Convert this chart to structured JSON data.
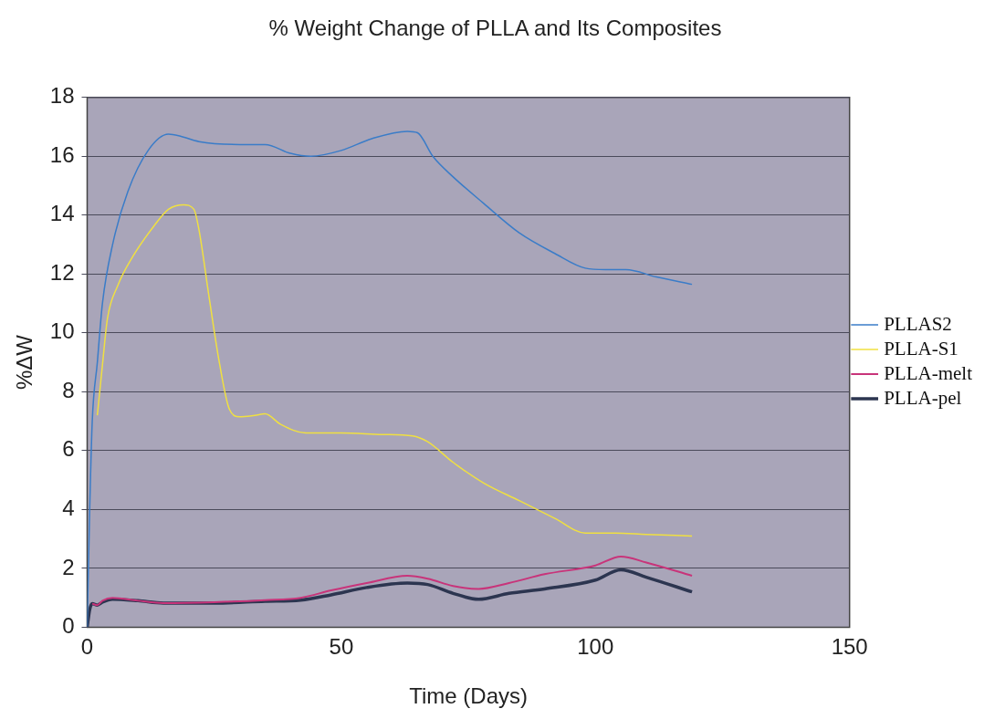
{
  "chart_data": {
    "type": "line",
    "title": "% Weight Change of PLLA and Its Composites",
    "xlabel": "Time (Days)",
    "ylabel": "%ΔW",
    "xlim": [
      0,
      150
    ],
    "xticks": [
      0,
      50,
      100,
      150
    ],
    "ylim": [
      0,
      18
    ],
    "yticks": [
      0,
      2,
      4,
      6,
      8,
      10,
      12,
      14,
      16,
      18
    ],
    "grid": "y",
    "legend": "right",
    "marker": "none",
    "line_style": "solid",
    "series": [
      {
        "name": "PLLA-pel",
        "color": "#2c3550",
        "x": [
          0,
          0.5,
          1,
          2,
          3,
          5,
          10,
          15,
          25,
          35,
          42,
          48,
          55,
          63,
          67,
          72,
          77,
          83,
          90,
          100,
          105,
          110,
          119
        ],
        "values": [
          0,
          0.6,
          0.8,
          0.75,
          0.85,
          0.95,
          0.9,
          0.82,
          0.82,
          0.88,
          0.92,
          1.1,
          1.35,
          1.5,
          1.45,
          1.15,
          0.95,
          1.15,
          1.3,
          1.6,
          1.95,
          1.7,
          1.2
        ]
      },
      {
        "name": "PLLA-melt",
        "color": "#c8347a",
        "x": [
          1,
          2,
          3,
          5,
          10,
          15,
          25,
          35,
          42,
          48,
          55,
          63,
          67,
          72,
          77,
          83,
          90,
          100,
          105,
          110,
          119
        ],
        "values": [
          0.8,
          0.75,
          0.9,
          1.0,
          0.9,
          0.82,
          0.85,
          0.92,
          1.0,
          1.25,
          1.5,
          1.75,
          1.65,
          1.4,
          1.3,
          1.5,
          1.8,
          2.1,
          2.4,
          2.2,
          1.75
        ]
      },
      {
        "name": "PLLA-S1",
        "color": "#f0e040",
        "x": [
          2,
          3,
          4,
          6,
          9,
          13,
          16,
          19,
          21,
          22,
          24,
          26,
          28,
          30,
          33,
          35,
          38,
          43,
          50,
          58,
          64,
          67,
          72,
          78,
          85,
          92,
          98,
          104,
          110,
          119
        ],
        "values": [
          7.2,
          8.9,
          10.5,
          11.6,
          12.6,
          13.6,
          14.2,
          14.35,
          14.2,
          13.5,
          11.2,
          9,
          7.4,
          7.15,
          7.2,
          7.25,
          6.9,
          6.6,
          6.6,
          6.55,
          6.5,
          6.3,
          5.6,
          4.9,
          4.3,
          3.7,
          3.2,
          3.2,
          3.15,
          3.1
        ]
      },
      {
        "name": "PLLAS2",
        "color": "#3a7cc8",
        "x": [
          0,
          0.5,
          1,
          2,
          3,
          5,
          8,
          12,
          16,
          18,
          22,
          30,
          35,
          40,
          44,
          50,
          56,
          63,
          65,
          68,
          72,
          78,
          85,
          92,
          98,
          102,
          106,
          112,
          119
        ],
        "values": [
          0,
          4,
          7,
          9,
          11,
          13,
          14.8,
          16.2,
          16.75,
          16.7,
          16.5,
          16.4,
          16.4,
          16.1,
          16.0,
          16.2,
          16.6,
          16.85,
          16.8,
          16.0,
          15.3,
          14.4,
          13.4,
          12.7,
          12.2,
          12.15,
          12.15,
          11.9,
          11.65
        ]
      }
    ]
  }
}
